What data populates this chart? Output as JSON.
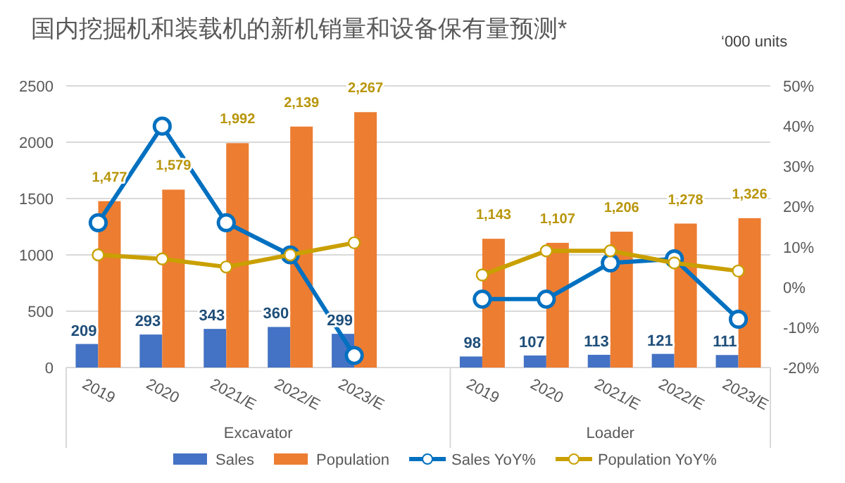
{
  "chart_data": {
    "type": "bar",
    "title": "国内挖掘机和装载机的新机销量和设备保有量预测*",
    "annotations": [
      "‘000 units",
      "Excavator",
      "Loader"
    ],
    "categories": [
      "2019",
      "2020",
      "2021/E",
      "2022/E",
      "2023/E",
      null,
      "2019",
      "2020",
      "2021/E",
      "2022/E",
      "2023/E"
    ],
    "series": [
      {
        "name": "Sales",
        "color": "#4472c4",
        "values": [
          209,
          293,
          343,
          360,
          299,
          null,
          98,
          107,
          113,
          121,
          111
        ],
        "value_labels": [
          "209",
          "293",
          "343",
          "360",
          "299",
          null,
          "98",
          "107",
          "113",
          "121",
          "111"
        ]
      },
      {
        "name": "Population",
        "color": "#ed7d31",
        "values": [
          1477,
          1579,
          1992,
          2139,
          2267,
          null,
          1143,
          1107,
          1206,
          1278,
          1326
        ],
        "value_labels": [
          "1,477",
          "1,579",
          "1,992",
          "2,139",
          "2,267",
          null,
          "1,143",
          "1,107",
          "1,206",
          "1,278",
          "1,326"
        ]
      },
      {
        "name": "Sales YoY%",
        "type": "line",
        "axis": "y2",
        "color": "#0070c0",
        "values": [
          16,
          40,
          16,
          8,
          -17,
          null,
          -3,
          -3,
          6,
          7,
          -8
        ]
      },
      {
        "name": "Population YoY%",
        "type": "line",
        "axis": "y2",
        "color": "#c9a000",
        "values": [
          8,
          7,
          5,
          8,
          11,
          null,
          3,
          9,
          9,
          6,
          4
        ]
      }
    ],
    "ylim": [
      0,
      2500
    ],
    "yticks": [
      0,
      500,
      1000,
      1500,
      2000,
      2500
    ],
    "y2lim": [
      -20,
      50
    ],
    "y2ticks": [
      {
        "value": -20,
        "label": "-20%"
      },
      {
        "value": -10,
        "label": "-10%"
      },
      {
        "value": 0,
        "label": "0%"
      },
      {
        "value": 10,
        "label": "10%"
      },
      {
        "value": 20,
        "label": "20%"
      },
      {
        "value": 30,
        "label": "30%"
      },
      {
        "value": 40,
        "label": "40%"
      },
      {
        "value": 50,
        "label": "50%"
      }
    ],
    "grid": "y",
    "legend": "bottom",
    "marker": "circle",
    "line_style": "solid"
  }
}
